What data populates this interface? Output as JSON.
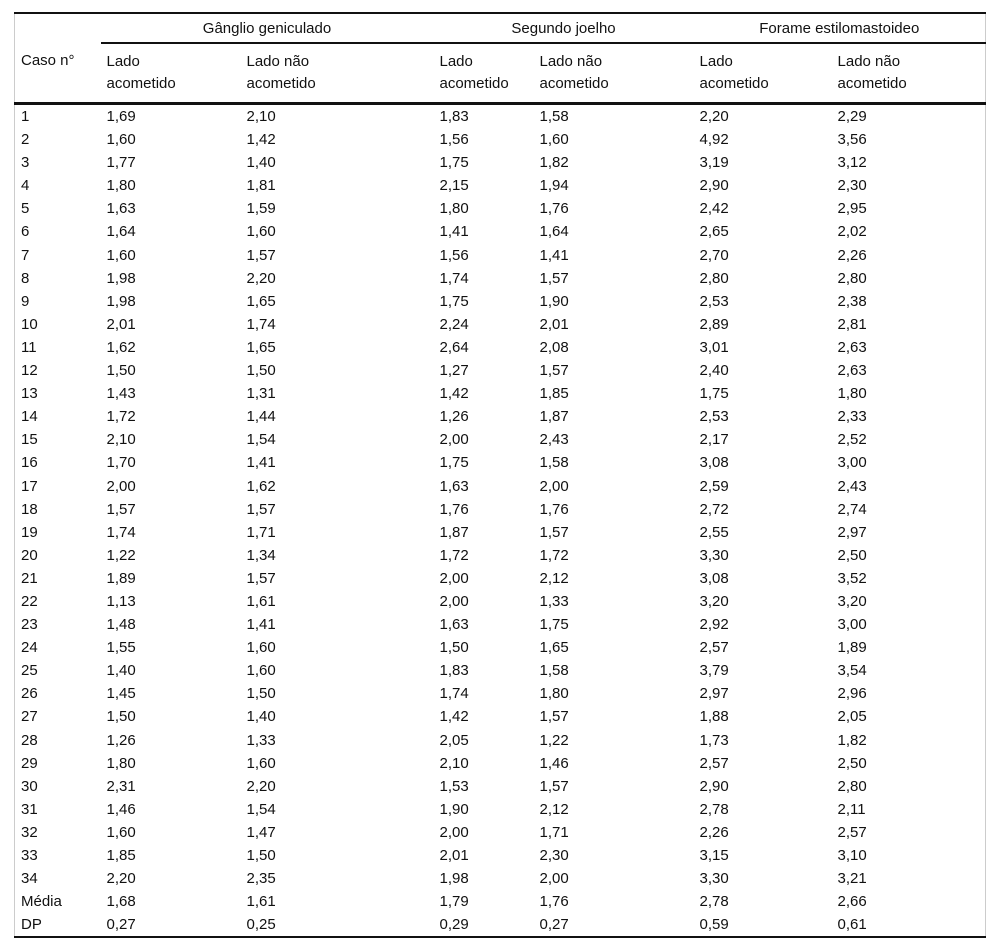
{
  "table": {
    "corner_header": "Caso n°",
    "groups": [
      {
        "label": "Gânglio geniculado"
      },
      {
        "label": "Segundo joelho"
      },
      {
        "label": "Forame estilomastoideo"
      }
    ],
    "subheaders": [
      "Lado\nacometido",
      "Lado não\nacometido"
    ],
    "rows": [
      {
        "caso": "1",
        "values": [
          "1,69",
          "2,10",
          "1,83",
          "1,58",
          "2,20",
          "2,29"
        ]
      },
      {
        "caso": "2",
        "values": [
          "1,60",
          "1,42",
          "1,56",
          "1,60",
          "4,92",
          "3,56"
        ]
      },
      {
        "caso": "3",
        "values": [
          "1,77",
          "1,40",
          "1,75",
          "1,82",
          "3,19",
          "3,12"
        ]
      },
      {
        "caso": "4",
        "values": [
          "1,80",
          "1,81",
          "2,15",
          "1,94",
          "2,90",
          "2,30"
        ]
      },
      {
        "caso": "5",
        "values": [
          "1,63",
          "1,59",
          "1,80",
          "1,76",
          "2,42",
          "2,95"
        ]
      },
      {
        "caso": "6",
        "values": [
          "1,64",
          "1,60",
          "1,41",
          "1,64",
          "2,65",
          "2,02"
        ]
      },
      {
        "caso": "7",
        "values": [
          "1,60",
          "1,57",
          "1,56",
          "1,41",
          "2,70",
          "2,26"
        ]
      },
      {
        "caso": "8",
        "values": [
          "1,98",
          "2,20",
          "1,74",
          "1,57",
          "2,80",
          "2,80"
        ]
      },
      {
        "caso": "9",
        "values": [
          "1,98",
          "1,65",
          "1,75",
          "1,90",
          "2,53",
          "2,38"
        ]
      },
      {
        "caso": "10",
        "values": [
          "2,01",
          "1,74",
          "2,24",
          "2,01",
          "2,89",
          "2,81"
        ]
      },
      {
        "caso": "11",
        "values": [
          "1,62",
          "1,65",
          "2,64",
          "2,08",
          "3,01",
          "2,63"
        ]
      },
      {
        "caso": "12",
        "values": [
          "1,50",
          "1,50",
          "1,27",
          "1,57",
          "2,40",
          "2,63"
        ]
      },
      {
        "caso": "13",
        "values": [
          "1,43",
          "1,31",
          "1,42",
          "1,85",
          "1,75",
          "1,80"
        ]
      },
      {
        "caso": "14",
        "values": [
          "1,72",
          "1,44",
          "1,26",
          "1,87",
          "2,53",
          "2,33"
        ]
      },
      {
        "caso": "15",
        "values": [
          "2,10",
          "1,54",
          "2,00",
          "2,43",
          "2,17",
          "2,52"
        ]
      },
      {
        "caso": "16",
        "values": [
          "1,70",
          "1,41",
          "1,75",
          "1,58",
          "3,08",
          "3,00"
        ]
      },
      {
        "caso": "17",
        "values": [
          "2,00",
          "1,62",
          "1,63",
          "2,00",
          "2,59",
          "2,43"
        ]
      },
      {
        "caso": "18",
        "values": [
          "1,57",
          "1,57",
          "1,76",
          "1,76",
          "2,72",
          "2,74"
        ]
      },
      {
        "caso": "19",
        "values": [
          "1,74",
          "1,71",
          "1,87",
          "1,57",
          "2,55",
          "2,97"
        ]
      },
      {
        "caso": "20",
        "values": [
          "1,22",
          "1,34",
          "1,72",
          "1,72",
          "3,30",
          "2,50"
        ]
      },
      {
        "caso": "21",
        "values": [
          "1,89",
          "1,57",
          "2,00",
          "2,12",
          "3,08",
          "3,52"
        ]
      },
      {
        "caso": "22",
        "values": [
          "1,13",
          "1,61",
          "2,00",
          "1,33",
          "3,20",
          "3,20"
        ]
      },
      {
        "caso": "23",
        "values": [
          "1,48",
          "1,41",
          "1,63",
          "1,75",
          "2,92",
          "3,00"
        ]
      },
      {
        "caso": "24",
        "values": [
          "1,55",
          "1,60",
          "1,50",
          "1,65",
          "2,57",
          "1,89"
        ]
      },
      {
        "caso": "25",
        "values": [
          "1,40",
          "1,60",
          "1,83",
          "1,58",
          "3,79",
          "3,54"
        ]
      },
      {
        "caso": "26",
        "values": [
          "1,45",
          "1,50",
          "1,74",
          "1,80",
          "2,97",
          "2,96"
        ]
      },
      {
        "caso": "27",
        "values": [
          "1,50",
          "1,40",
          "1,42",
          "1,57",
          "1,88",
          "2,05"
        ]
      },
      {
        "caso": "28",
        "values": [
          "1,26",
          "1,33",
          "2,05",
          "1,22",
          "1,73",
          "1,82"
        ]
      },
      {
        "caso": "29",
        "values": [
          "1,80",
          "1,60",
          "2,10",
          "1,46",
          "2,57",
          "2,50"
        ]
      },
      {
        "caso": "30",
        "values": [
          "2,31",
          "2,20",
          "1,53",
          "1,57",
          "2,90",
          "2,80"
        ]
      },
      {
        "caso": "31",
        "values": [
          "1,46",
          "1,54",
          "1,90",
          "2,12",
          "2,78",
          "2,11"
        ]
      },
      {
        "caso": "32",
        "values": [
          "1,60",
          "1,47",
          "2,00",
          "1,71",
          "2,26",
          "2,57"
        ]
      },
      {
        "caso": "33",
        "values": [
          "1,85",
          "1,50",
          "2,01",
          "2,30",
          "3,15",
          "3,10"
        ]
      },
      {
        "caso": "34",
        "values": [
          "2,20",
          "2,35",
          "1,98",
          "2,00",
          "3,30",
          "3,21"
        ]
      },
      {
        "caso": "Média",
        "values": [
          "1,68",
          "1,61",
          "1,79",
          "1,76",
          "2,78",
          "2,66"
        ]
      },
      {
        "caso": "DP",
        "values": [
          "0,27",
          "0,25",
          "0,29",
          "0,27",
          "0,59",
          "0,61"
        ]
      }
    ]
  }
}
